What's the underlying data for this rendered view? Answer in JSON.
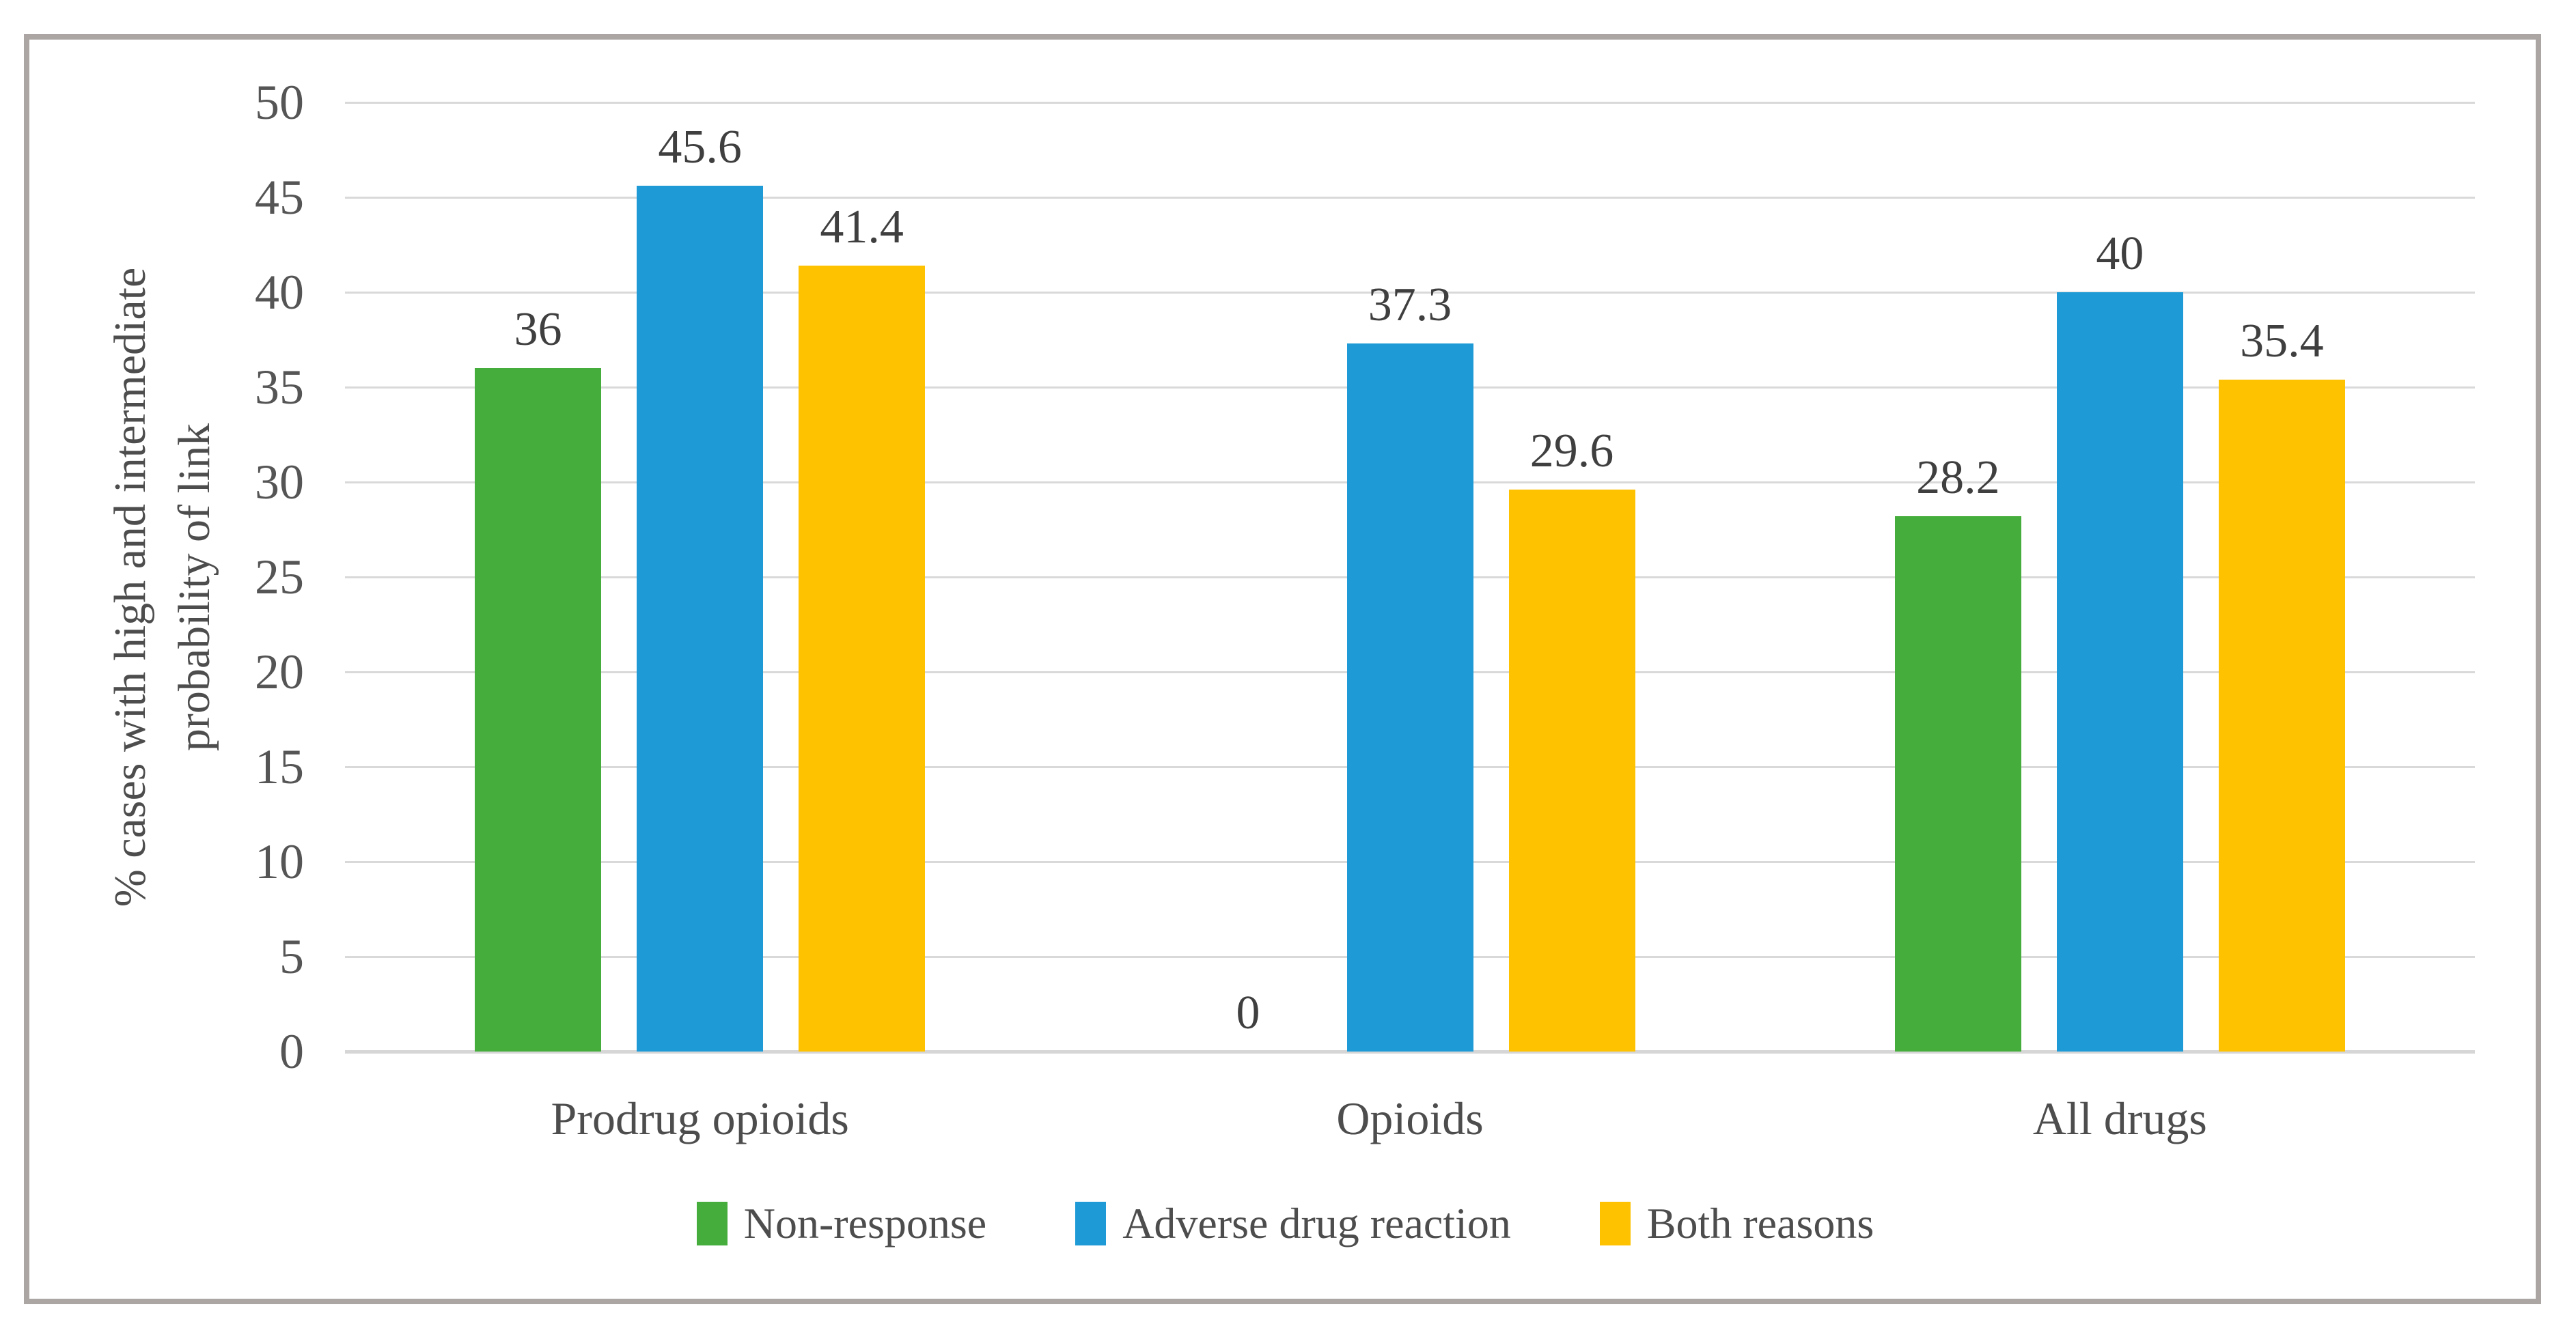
{
  "colors": {
    "frame_border": "#aba5a3",
    "gridline": "#d9d9d9",
    "axis_line": "#d6d6d6",
    "text": "#4d4d4d",
    "data_label_text": "#3f3f3f",
    "series_green": "#44ad3b",
    "series_blue": "#1e9bd7",
    "series_yellow": "#fec200"
  },
  "chart_data": {
    "type": "bar",
    "title": "",
    "categories": [
      "Prodrug opioids",
      "Opioids",
      "All drugs"
    ],
    "series": [
      {
        "name": "Non-response",
        "color": "#44ad3b",
        "values": [
          36,
          0,
          28.2
        ],
        "labels": [
          "36",
          "0",
          "28.2"
        ]
      },
      {
        "name": "Adverse drug reaction",
        "color": "#1e9bd7",
        "values": [
          45.6,
          37.3,
          40
        ],
        "labels": [
          "45.6",
          "37.3",
          "40"
        ]
      },
      {
        "name": "Both reasons",
        "color": "#fec200",
        "values": [
          41.4,
          29.6,
          35.4
        ],
        "labels": [
          "41.4",
          "29.6",
          "35.4"
        ]
      }
    ],
    "ylabel_line1": "% cases with high and intermediate",
    "ylabel_line2": "probability of link",
    "xlabel": "",
    "ylim": [
      0,
      50
    ],
    "ytick_labels": [
      "0",
      "5",
      "10",
      "15",
      "20",
      "25",
      "30",
      "35",
      "40",
      "45",
      "50"
    ],
    "grid": true,
    "legend_position": "bottom"
  }
}
